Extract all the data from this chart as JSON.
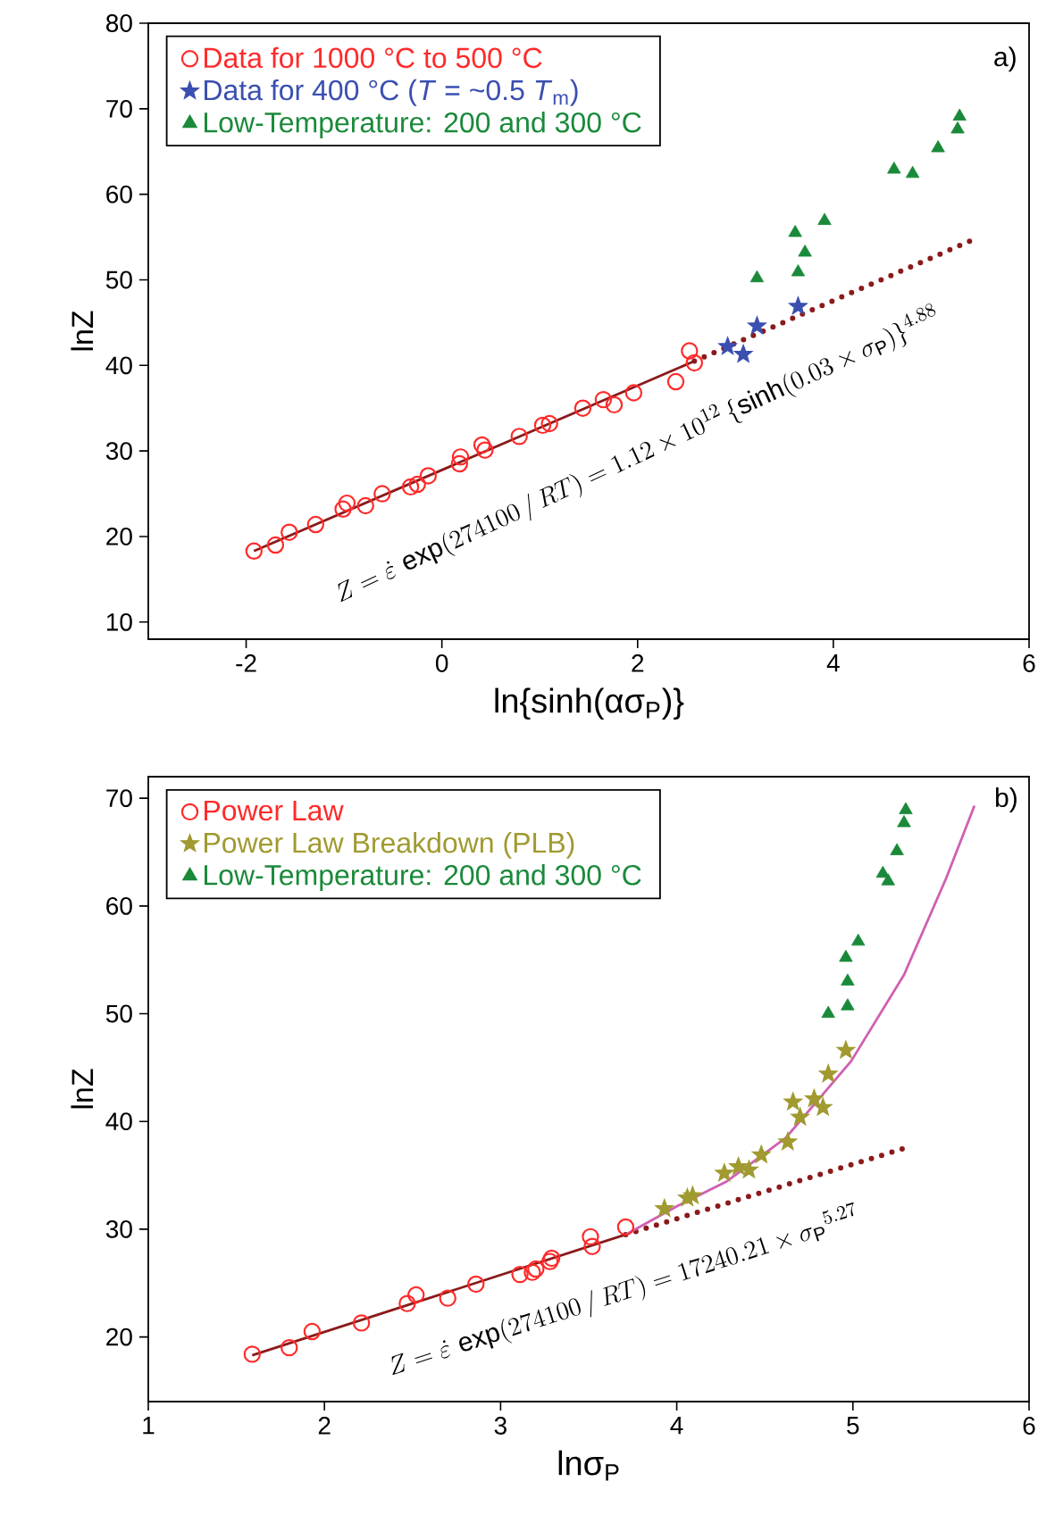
{
  "chart_data": [
    {
      "type": "scatter",
      "xlabel": "ln{sinh(ασ$_{P}$)}",
      "ylabel": "lnZ",
      "xlim": [
        -3,
        6
      ],
      "ylim": [
        8,
        80
      ],
      "xticks": [
        -2,
        0,
        2,
        4,
        6
      ],
      "yticks": [
        10,
        20,
        30,
        40,
        50,
        60,
        70,
        80
      ],
      "legend": "top left",
      "annotations": [
        "Z=\\dot{\\varepsilon}\\,\\exp(274100\\,/\\,RT)=1.12\\times10^{12}\\,\\{\\sinh(0.03\\times\\sigma_{\\mathrm{P}})\\}^{4.88}",
        "a)"
      ],
      "series": [
        {
          "name": "Data for 1000 °C to 500 °C",
          "color": "#ff2a2a",
          "marker": "circle",
          "x": [
            -1.92,
            -1.7,
            -1.56,
            -1.29,
            -1.01,
            -0.97,
            -0.78,
            -0.61,
            -0.32,
            -0.25,
            -0.14,
            0.18,
            0.19,
            0.41,
            0.44,
            0.79,
            1.03,
            1.1,
            1.44,
            1.65,
            1.76,
            1.96,
            2.39,
            2.53,
            2.58
          ],
          "values": [
            18.3,
            19.0,
            20.5,
            21.4,
            23.2,
            23.9,
            23.6,
            25.0,
            25.8,
            26.1,
            27.1,
            28.5,
            29.3,
            30.7,
            30.1,
            31.7,
            33.0,
            33.2,
            35.0,
            36.0,
            35.4,
            36.8,
            38.1,
            41.7,
            40.3
          ]
        },
        {
          "name": "Data for 400 °C (*T* = ~0.5 *T*$_{m}$)",
          "color": "#3a4fb0",
          "marker": "star",
          "x": [
            2.92,
            3.08,
            3.22,
            3.64
          ],
          "values": [
            42.2,
            41.3,
            44.6,
            46.9
          ]
        },
        {
          "name": "Low-Temperature: 200 and 300 °C",
          "color": "#1a8a3a",
          "marker": "triangle",
          "x": [
            3.22,
            3.61,
            3.71,
            3.64,
            3.91,
            4.62,
            4.81,
            5.07,
            5.27,
            5.29
          ],
          "values": [
            50.2,
            55.5,
            53.2,
            50.9,
            56.9,
            62.9,
            62.4,
            65.4,
            67.6,
            69.1
          ]
        },
        {
          "type": "line",
          "color": "#8b1a1a",
          "line_style": "solid",
          "x": [
            -1.92,
            2.58
          ],
          "values": [
            18.3,
            40.5
          ]
        },
        {
          "type": "line",
          "color": "#8b1a1a",
          "line_style": "dotted",
          "x": [
            2.58,
            5.47
          ],
          "values": [
            40.5,
            54.9
          ]
        }
      ]
    },
    {
      "type": "scatter",
      "xlabel": "lnσ$_{P}$",
      "ylabel": "lnZ",
      "xlim": [
        1,
        6
      ],
      "ylim": [
        14,
        72
      ],
      "xticks": [
        1,
        2,
        3,
        4,
        5,
        6
      ],
      "yticks": [
        20,
        30,
        40,
        50,
        60,
        70
      ],
      "legend": "top left",
      "annotations": [
        "Z=\\dot{\\varepsilon}\\,\\exp(274100\\,/\\,RT)=17240.21\\times{\\sigma_{\\mathrm{P}}}^{5.27}",
        "b)"
      ],
      "series": [
        {
          "name": "Power Law",
          "color": "#ff2a2a",
          "marker": "circle",
          "x": [
            1.59,
            1.8,
            1.93,
            2.21,
            2.47,
            2.52,
            2.7,
            2.86,
            3.11,
            3.18,
            3.2,
            3.28,
            3.29,
            3.51,
            3.52,
            3.71
          ],
          "values": [
            18.4,
            19.0,
            20.5,
            21.3,
            23.1,
            23.9,
            23.6,
            24.9,
            25.8,
            26.0,
            26.3,
            27.0,
            27.3,
            29.3,
            28.4,
            30.2
          ]
        },
        {
          "name": "Power Law Breakdown (PLB)",
          "color": "#a09a30",
          "marker": "star",
          "x": [
            3.93,
            4.06,
            4.09,
            4.27,
            4.35,
            4.41,
            4.48,
            4.63,
            4.66,
            4.7,
            4.78,
            4.83,
            4.86,
            4.96
          ],
          "values": [
            31.9,
            32.9,
            33.1,
            35.2,
            35.8,
            35.5,
            36.9,
            38.1,
            41.8,
            40.4,
            42.1,
            41.3,
            44.4,
            46.6
          ]
        },
        {
          "name": "Low-Temperature: 200 and 300 °C",
          "color": "#1a8a3a",
          "marker": "triangle",
          "x": [
            4.86,
            4.97,
            4.97,
            4.96,
            5.03,
            5.17,
            5.2,
            5.25,
            5.29,
            5.3
          ],
          "values": [
            50.0,
            50.7,
            53.0,
            55.2,
            56.7,
            63.0,
            62.3,
            65.1,
            67.7,
            68.9
          ]
        },
        {
          "type": "line",
          "color": "#8b1a1a",
          "line_style": "solid",
          "x": [
            1.59,
            3.71
          ],
          "values": [
            18.3,
            29.5
          ]
        },
        {
          "type": "line",
          "color": "#8b1a1a",
          "line_style": "dotted",
          "x": [
            3.71,
            5.29
          ],
          "values": [
            29.5,
            37.5
          ]
        },
        {
          "type": "line",
          "color": "#d060b0",
          "line_style": "solid",
          "x": [
            3.71,
            4.01,
            4.28,
            4.62,
            4.99,
            5.29,
            5.53,
            5.69
          ],
          "values": [
            29.5,
            32.2,
            34.4,
            38.5,
            45.6,
            53.6,
            62.6,
            69.3
          ]
        }
      ]
    }
  ]
}
